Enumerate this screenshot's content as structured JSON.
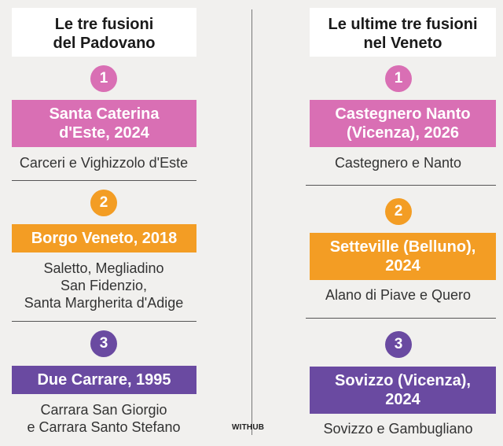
{
  "brand": "WITHUB",
  "left": {
    "title_line1": "Le tre fusioni",
    "title_line2": "del Padovano",
    "items": [
      {
        "number": "1",
        "name_line1": "Santa Caterina",
        "name_line2": "d'Este, 2024",
        "desc_lines": [
          "Carceri e Vighizzolo d'Este"
        ]
      },
      {
        "number": "2",
        "name_line1": "Borgo Veneto, 2018",
        "name_line2": "",
        "desc_lines": [
          "Saletto, Megliadino",
          "San Fidenzio,",
          "Santa Margherita d'Adige"
        ]
      },
      {
        "number": "3",
        "name_line1": "Due Carrare, 1995",
        "name_line2": "",
        "desc_lines": [
          "Carrara San Giorgio",
          "e Carrara Santo Stefano"
        ]
      }
    ]
  },
  "right": {
    "title_line1": "Le ultime tre fusioni",
    "title_line2": "nel Veneto",
    "items": [
      {
        "number": "1",
        "name_line1": "Castegnero Nanto",
        "name_line2": "(Vicenza), 2026",
        "desc_lines": [
          "Castegnero e Nanto"
        ]
      },
      {
        "number": "2",
        "name_line1": "Setteville (Belluno),",
        "name_line2": "2024",
        "desc_lines": [
          "Alano di Piave e Quero"
        ]
      },
      {
        "number": "3",
        "name_line1": "Sovizzo (Vicenza),",
        "name_line2": "2024",
        "desc_lines": [
          "Sovizzo e Gambugliano"
        ]
      }
    ]
  },
  "colors": {
    "pink": "#d96fb4",
    "orange": "#f39d24",
    "purple": "#6a4aa1"
  }
}
